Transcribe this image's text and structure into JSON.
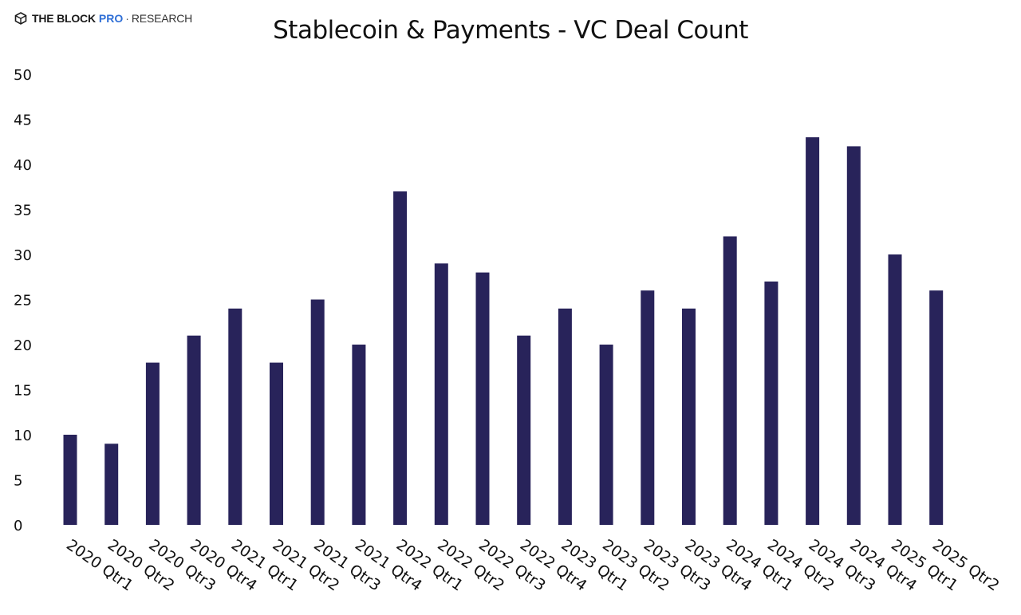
{
  "brand": {
    "name": "THE BLOCK",
    "pro": "PRO",
    "separator": "·",
    "research": "RESEARCH",
    "icon": "the-block-cube-icon"
  },
  "chart_data": {
    "type": "bar",
    "title": "Stablecoin & Payments - VC Deal Count",
    "xlabel": "",
    "ylabel": "",
    "categories": [
      "2020 Qtr1",
      "2020 Qtr2",
      "2020 Qtr3",
      "2020 Qtr4",
      "2021 Qtr1",
      "2021 Qtr2",
      "2021 Qtr3",
      "2021 Qtr4",
      "2022 Qtr1",
      "2022 Qtr2",
      "2022 Qtr3",
      "2022 Qtr4",
      "2023 Qtr1",
      "2023 Qtr2",
      "2023 Qtr3",
      "2023 Qtr4",
      "2024 Qtr1",
      "2024 Qtr2",
      "2024 Qtr3",
      "2024 Qtr4",
      "2025 Qtr1",
      "2025 Qtr2"
    ],
    "values": [
      10,
      9,
      18,
      21,
      24,
      18,
      25,
      20,
      37,
      29,
      28,
      21,
      24,
      20,
      26,
      24,
      32,
      27,
      43,
      42,
      30,
      26
    ],
    "ylim": [
      0,
      50
    ],
    "yticks": [
      0,
      5,
      10,
      15,
      20,
      25,
      30,
      35,
      40,
      45,
      50
    ],
    "grid": false,
    "legend": "none",
    "bar_color": "#28235a"
  }
}
